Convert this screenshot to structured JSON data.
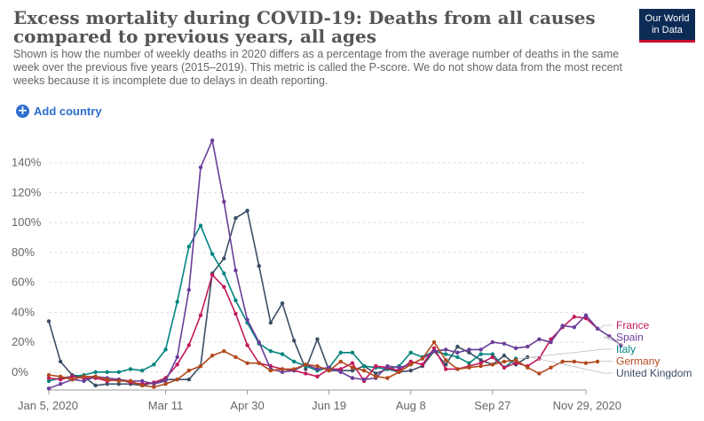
{
  "header": {
    "title": "Excess mortality during COVID-19: Deaths from all causes compared to previous years, all ages",
    "subtitle": "Shown is how the number of weekly deaths in 2020 differs as a percentage from the average number of deaths in the same week over the previous five years (2015–2019). This metric is called the P-score. We do not show data from the most recent weeks because it is incomplete due to delays in death reporting."
  },
  "logo": {
    "line1": "Our World",
    "line2": "in Data"
  },
  "controls": {
    "add_country_label": "Add country",
    "add_icon": "plus-circle-icon"
  },
  "colors": {
    "France": "#c2185b",
    "Spain": "#6a3d9a",
    "Italy": "#00847e",
    "Germany": "#b2491c",
    "United Kingdom": "#3c4e66"
  },
  "chart_data": {
    "type": "line",
    "y_tick_labels": [
      "0%",
      "20%",
      "40%",
      "60%",
      "80%",
      "100%",
      "120%",
      "140%"
    ],
    "y_ticks": [
      0,
      20,
      40,
      60,
      80,
      100,
      120,
      140
    ],
    "ylim": [
      -12,
      160
    ],
    "x_tick_labels": [
      "Jan 5, 2020",
      "Mar 11",
      "Apr 30",
      "Jun 19",
      "Aug 8",
      "Sep 27",
      "Nov 29, 2020"
    ],
    "x_tick_weeks": [
      0,
      10,
      17,
      24,
      31,
      38,
      46
    ],
    "xlim": [
      0,
      46
    ],
    "grid": true,
    "legend_position": "right",
    "series": [
      {
        "name": "United Kingdom",
        "start_week": 0,
        "values": [
          34,
          7,
          -2,
          -3,
          -9,
          -8,
          -8,
          -8,
          -9,
          -7,
          -5,
          -5,
          -5,
          4,
          66,
          76,
          103,
          108,
          71,
          33,
          46,
          21,
          2,
          22,
          1,
          1,
          1,
          4,
          -1,
          2,
          0,
          1,
          4,
          14,
          5,
          17,
          13,
          8,
          5,
          11,
          5,
          10
        ]
      },
      {
        "name": "Italy",
        "start_week": 0,
        "values": [
          -6,
          -4,
          -3,
          -2,
          0,
          0,
          0,
          2,
          1,
          5,
          15,
          47,
          84,
          98,
          79,
          66,
          48,
          33,
          19,
          14,
          12,
          7,
          4,
          1,
          3,
          13,
          13,
          4,
          3,
          2,
          4,
          13,
          10,
          14,
          12,
          10,
          6,
          12,
          12,
          3,
          9
        ]
      },
      {
        "name": "France",
        "start_week": 0,
        "values": [
          -4,
          -5,
          -3,
          -4,
          -4,
          -6,
          -5,
          -7,
          -8,
          -7,
          -4,
          5,
          18,
          38,
          65,
          57,
          39,
          18,
          6,
          4,
          2,
          1,
          -1,
          -3,
          2,
          2,
          6,
          -6,
          4,
          3,
          1,
          7,
          5,
          16,
          2,
          2,
          4,
          6,
          10,
          3,
          6,
          4,
          9,
          22,
          30,
          37,
          36,
          29
        ]
      },
      {
        "name": "Spain",
        "start_week": 0,
        "values": [
          -11,
          -8,
          -5,
          -6,
          -3,
          -4,
          -5,
          -6,
          -6,
          -8,
          -6,
          10,
          55,
          137,
          155,
          114,
          68,
          35,
          20,
          2,
          0,
          1,
          5,
          2,
          3,
          0,
          -4,
          -5,
          -4,
          4,
          3,
          5,
          9,
          14,
          15,
          13,
          15,
          15,
          20,
          19,
          16,
          17,
          22,
          20,
          31,
          30,
          38,
          29,
          24,
          18
        ]
      },
      {
        "name": "Germany",
        "start_week": 0,
        "values": [
          -2,
          -3,
          -5,
          -3,
          -3,
          -5,
          -6,
          -6,
          -9,
          -10,
          -8,
          -5,
          1,
          4,
          11,
          14,
          10,
          6,
          6,
          1,
          2,
          2,
          5,
          4,
          1,
          7,
          3,
          1,
          -3,
          -4,
          0,
          5,
          9,
          20,
          8,
          2,
          3,
          4,
          5,
          7,
          8,
          3,
          -1,
          3,
          7,
          7,
          6,
          7
        ]
      }
    ],
    "legend_order": [
      "France",
      "Spain",
      "Italy",
      "Germany",
      "United Kingdom"
    ]
  }
}
